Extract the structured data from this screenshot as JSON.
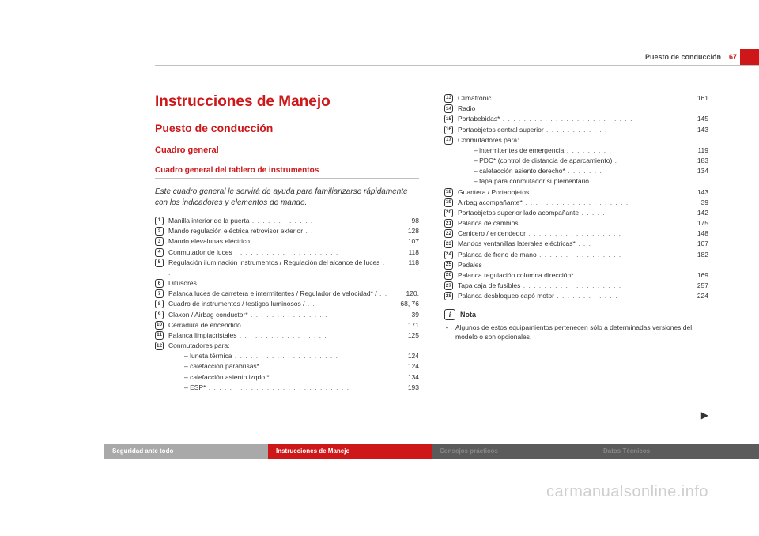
{
  "header": {
    "section": "Puesto de conducción",
    "page": "67"
  },
  "titles": {
    "h1": "Instrucciones de Manejo",
    "h2": "Puesto de conducción",
    "h3": "Cuadro general",
    "h4": "Cuadro general del tablero de instrumentos",
    "intro": "Este cuadro general le servirá de ayuda para familiarizarse rápidamente con los indicadores y elementos de mando."
  },
  "left": [
    {
      "n": 1,
      "t": "Manilla interior de la puerta",
      "p": "98"
    },
    {
      "n": 2,
      "t": "Mando regulación eléctrica retrovisor exterior",
      "p": "128"
    },
    {
      "n": 3,
      "t": "Mando elevalunas eléctrico",
      "p": "107"
    },
    {
      "n": 4,
      "t": "Conmutador de luces",
      "p": "118"
    },
    {
      "n": 5,
      "t": "Regulación iluminación instrumentos / Regulación del alcance de luces",
      "p": "118"
    },
    {
      "n": 6,
      "t": "Difusores",
      "p": ""
    },
    {
      "n": 7,
      "t": "Palanca luces de carretera e intermitentes / Regulador de velocidad* /",
      "p": "120,"
    },
    {
      "n": 8,
      "t": "Cuadro de instrumentos / testigos luminosos /",
      "p": "68, 76"
    },
    {
      "n": 9,
      "t": "Claxon / Airbag conductor*",
      "p": "39"
    },
    {
      "n": 10,
      "t": "Cerradura de encendido",
      "p": "171"
    },
    {
      "n": 11,
      "t": "Palanca limpiacristales",
      "p": "125"
    },
    {
      "n": 12,
      "t": "Conmutadores para:",
      "p": "",
      "subs": [
        {
          "t": "luneta térmica",
          "p": "124"
        },
        {
          "t": "calefacción parabrisas*",
          "p": "124"
        },
        {
          "t": "calefacción asiento izqdo.*",
          "p": "134"
        },
        {
          "t": "ESP*",
          "p": "193"
        }
      ]
    }
  ],
  "right": [
    {
      "n": 13,
      "t": "Climatronic",
      "p": "161"
    },
    {
      "n": 14,
      "t": "Radio",
      "p": ""
    },
    {
      "n": 15,
      "t": "Portabebidas*",
      "p": "145"
    },
    {
      "n": 16,
      "t": "Portaobjetos central superior",
      "p": "143"
    },
    {
      "n": 17,
      "t": "Conmutadores para:",
      "p": "",
      "subs": [
        {
          "t": "intermitentes de emergencia",
          "p": "119"
        },
        {
          "t": "PDC* (control de distancia de aparcamiento)",
          "p": "183"
        },
        {
          "t": "calefacción asiento derecho*",
          "p": "134"
        },
        {
          "t": "tapa para conmutador suplementario",
          "p": ""
        }
      ]
    },
    {
      "n": 18,
      "t": "Guantera / Portaobjetos",
      "p": "143"
    },
    {
      "n": 19,
      "t": "Airbag acompañante*",
      "p": "39"
    },
    {
      "n": 20,
      "t": "Portaobjetos superior lado acompañante",
      "p": "142"
    },
    {
      "n": 21,
      "t": "Palanca de cambios",
      "p": "175"
    },
    {
      "n": 22,
      "t": "Cenicero / encendedor",
      "p": "148"
    },
    {
      "n": 23,
      "t": "Mandos ventanillas laterales eléctricas*",
      "p": "107"
    },
    {
      "n": 24,
      "t": "Palanca de freno de mano",
      "p": "182"
    },
    {
      "n": 25,
      "t": "Pedales",
      "p": ""
    },
    {
      "n": 26,
      "t": "Palanca regulación columna dirección*",
      "p": "169"
    },
    {
      "n": 27,
      "t": "Tapa caja de fusibles",
      "p": "257"
    },
    {
      "n": 28,
      "t": "Palanca desbloqueo capó motor",
      "p": "224"
    }
  ],
  "note": {
    "label": "Nota",
    "text": "Algunos de estos equipamientos pertenecen sólo a determinadas versiones del modelo o son opcionales."
  },
  "footer": {
    "tabs": [
      "Seguridad ante todo",
      "Instrucciones de Manejo",
      "Consejos prácticos",
      "Datos Técnicos"
    ]
  },
  "watermark": "carmanualsonline.info"
}
